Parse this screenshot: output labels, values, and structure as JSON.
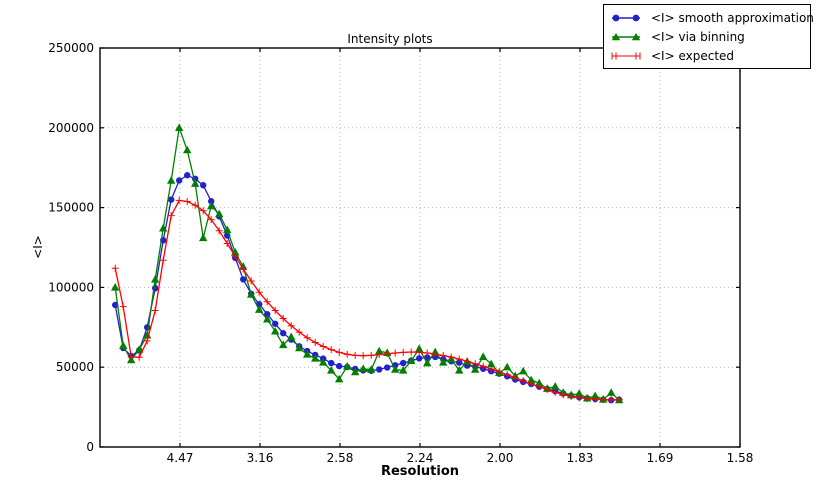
{
  "chart_data": {
    "type": "line",
    "title": "Intensity plots",
    "xlabel": "Resolution",
    "ylabel": "<I>",
    "grid": true,
    "x_axis": {
      "scale": "inverse_d_squared",
      "min": 0.0,
      "max": 0.4,
      "tick_positions": [
        0.05,
        0.1,
        0.15,
        0.2,
        0.25,
        0.3,
        0.35,
        0.4
      ],
      "tick_labels": [
        "4.47",
        "3.16",
        "2.58",
        "2.24",
        "2.00",
        "1.83",
        "1.69",
        "1.58"
      ]
    },
    "y_axis": {
      "min": 0,
      "max": 250000,
      "tick_positions": [
        0,
        50000,
        100000,
        150000,
        200000,
        250000
      ],
      "tick_labels": [
        "0",
        "50000",
        "100000",
        "150000",
        "200000",
        "250000"
      ]
    },
    "legend": {
      "position": "top-right",
      "entries": [
        "<I> smooth approximation",
        "<I> via binning",
        "<I> expected"
      ]
    },
    "x": [
      0.0095,
      0.0145,
      0.0195,
      0.0245,
      0.0295,
      0.0345,
      0.0395,
      0.0445,
      0.0495,
      0.0545,
      0.0595,
      0.0645,
      0.0695,
      0.0745,
      0.0795,
      0.0845,
      0.0895,
      0.0945,
      0.0995,
      0.1045,
      0.1095,
      0.1145,
      0.1195,
      0.1245,
      0.1295,
      0.1345,
      0.1395,
      0.1445,
      0.1495,
      0.1545,
      0.1595,
      0.1645,
      0.1695,
      0.1745,
      0.1795,
      0.1845,
      0.1895,
      0.1945,
      0.1995,
      0.2045,
      0.2095,
      0.2145,
      0.2195,
      0.2245,
      0.2295,
      0.2345,
      0.2395,
      0.2445,
      0.2495,
      0.2545,
      0.2595,
      0.2645,
      0.2695,
      0.2745,
      0.2795,
      0.2845,
      0.2895,
      0.2945,
      0.2995,
      0.3045,
      0.3095,
      0.3145,
      0.3195,
      0.3245
    ],
    "series": [
      {
        "name": "<I> smooth approximation",
        "color": "#2222cc",
        "marker": "circle",
        "values": [
          89000,
          62000,
          57000,
          60500,
          75000,
          99500,
          129500,
          155000,
          167000,
          170300,
          168000,
          164000,
          154000,
          144500,
          132500,
          118500,
          105000,
          96000,
          89500,
          83200,
          77200,
          71300,
          67300,
          63100,
          60100,
          57700,
          55400,
          52600,
          50700,
          50100,
          48900,
          48000,
          47800,
          48600,
          49800,
          51200,
          52600,
          54100,
          55500,
          56100,
          56400,
          55000,
          53700,
          52900,
          51000,
          50300,
          49000,
          47500,
          46000,
          44300,
          42300,
          40800,
          39500,
          37800,
          36400,
          35000,
          33500,
          32200,
          31200,
          30500,
          30100,
          29700,
          29300,
          29600
        ]
      },
      {
        "name": "<I> via binning",
        "color": "#008000",
        "marker": "triangle",
        "values": [
          100000,
          63500,
          54500,
          61000,
          70000,
          105000,
          137000,
          167000,
          200000,
          186000,
          165000,
          131000,
          151000,
          146000,
          136000,
          122000,
          113000,
          95500,
          86000,
          80000,
          72500,
          64000,
          69000,
          62000,
          58000,
          55500,
          53000,
          48000,
          42500,
          50500,
          47000,
          49000,
          48500,
          60000,
          59000,
          48500,
          48000,
          54000,
          61500,
          52500,
          59500,
          53000,
          55000,
          48000,
          53500,
          48500,
          56500,
          52000,
          46500,
          50000,
          44500,
          47500,
          42000,
          40000,
          36500,
          38000,
          34000,
          32500,
          33500,
          30500,
          32000,
          29800,
          34000,
          29400
        ]
      },
      {
        "name": "<I> expected",
        "color": "#ff0000",
        "marker": "plus",
        "values": [
          112000,
          88000,
          56500,
          56200,
          66500,
          85500,
          117000,
          145000,
          154500,
          153800,
          151500,
          148000,
          142500,
          135500,
          127500,
          119500,
          111500,
          104000,
          97000,
          91000,
          85500,
          80500,
          76000,
          72000,
          68500,
          65500,
          63000,
          61000,
          59300,
          58100,
          57400,
          57200,
          57400,
          57900,
          58400,
          58900,
          59300,
          59500,
          59400,
          58900,
          58200,
          57300,
          56300,
          55100,
          53700,
          52200,
          50600,
          48900,
          47100,
          45300,
          43400,
          41500,
          39600,
          37800,
          36000,
          34300,
          32800,
          31700,
          30900,
          30300,
          29900,
          29700,
          29600,
          29600
        ]
      }
    ]
  }
}
